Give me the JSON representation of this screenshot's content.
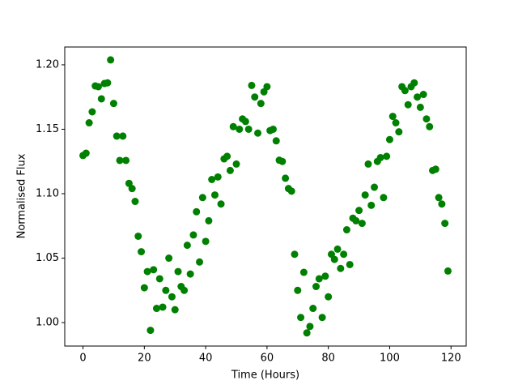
{
  "chart_data": {
    "type": "scatter",
    "xlabel": "Time (Hours)",
    "ylabel": "Normalised Flux",
    "color": "#008000",
    "x": [
      0,
      1,
      2,
      3,
      4,
      5,
      6,
      7,
      8,
      9,
      10,
      11,
      12,
      13,
      14,
      15,
      16,
      17,
      18,
      19,
      20,
      21,
      22,
      23,
      24,
      25,
      26,
      27,
      28,
      29,
      30,
      31,
      32,
      33,
      34,
      35,
      36,
      37,
      38,
      39,
      40,
      41,
      42,
      43,
      44,
      45,
      46,
      47,
      48,
      49,
      50,
      51,
      52,
      53,
      54,
      55,
      56,
      57,
      58,
      59,
      60,
      61,
      62,
      63,
      64,
      65,
      66,
      67,
      68,
      69,
      70,
      71,
      72,
      73,
      74,
      75,
      76,
      77,
      78,
      79,
      80,
      81,
      82,
      83,
      84,
      85,
      86,
      87,
      88,
      89,
      90,
      91,
      92,
      93,
      94,
      95,
      96,
      97,
      98,
      99,
      100,
      101,
      102,
      103,
      104,
      105,
      106,
      107,
      108,
      109,
      110,
      111,
      112,
      113,
      114,
      115,
      116,
      117,
      118,
      119
    ],
    "values": [
      1.1296,
      1.1314,
      1.155,
      1.1635,
      1.1836,
      1.183,
      1.1736,
      1.1855,
      1.186,
      1.2038,
      1.17,
      1.1447,
      1.1258,
      1.1447,
      1.1258,
      1.108,
      1.104,
      1.094,
      1.067,
      1.055,
      1.027,
      1.0396,
      0.994,
      1.041,
      1.011,
      1.034,
      1.012,
      1.025,
      1.05,
      1.02,
      1.01,
      1.0396,
      1.028,
      1.025,
      1.06,
      1.0377,
      1.068,
      1.086,
      1.047,
      1.097,
      1.063,
      1.079,
      1.111,
      1.099,
      1.113,
      1.092,
      1.127,
      1.129,
      1.118,
      1.152,
      1.123,
      1.15,
      1.158,
      1.156,
      1.15,
      1.184,
      1.175,
      1.147,
      1.17,
      1.179,
      1.183,
      1.149,
      1.15,
      1.141,
      1.126,
      1.125,
      1.112,
      1.104,
      1.102,
      1.053,
      1.025,
      1.004,
      1.039,
      0.992,
      0.997,
      1.011,
      1.028,
      1.034,
      1.004,
      1.036,
      1.02,
      1.053,
      1.049,
      1.057,
      1.042,
      1.053,
      1.072,
      1.045,
      1.081,
      1.079,
      1.087,
      1.077,
      1.099,
      1.123,
      1.091,
      1.105,
      1.125,
      1.128,
      1.097,
      1.129,
      1.142,
      1.16,
      1.155,
      1.148,
      1.183,
      1.18,
      1.169,
      1.183,
      1.186,
      1.175,
      1.167,
      1.177,
      1.158,
      1.152,
      1.118,
      1.119,
      1.097,
      1.092,
      1.077,
      1.04
    ],
    "xlim": [
      -5.95,
      124.95
    ],
    "xticks": [
      0,
      20,
      40,
      60,
      80,
      100,
      120
    ],
    "ylim": [
      0.9818,
      1.2138
    ],
    "yticks": [
      {
        "value": 1.0,
        "label": "1.00"
      },
      {
        "value": 1.05,
        "label": "1.05"
      },
      {
        "value": 1.1,
        "label": "1.10"
      },
      {
        "value": 1.15,
        "label": "1.15"
      },
      {
        "value": 1.2,
        "label": "1.20"
      }
    ],
    "grid": false
  }
}
